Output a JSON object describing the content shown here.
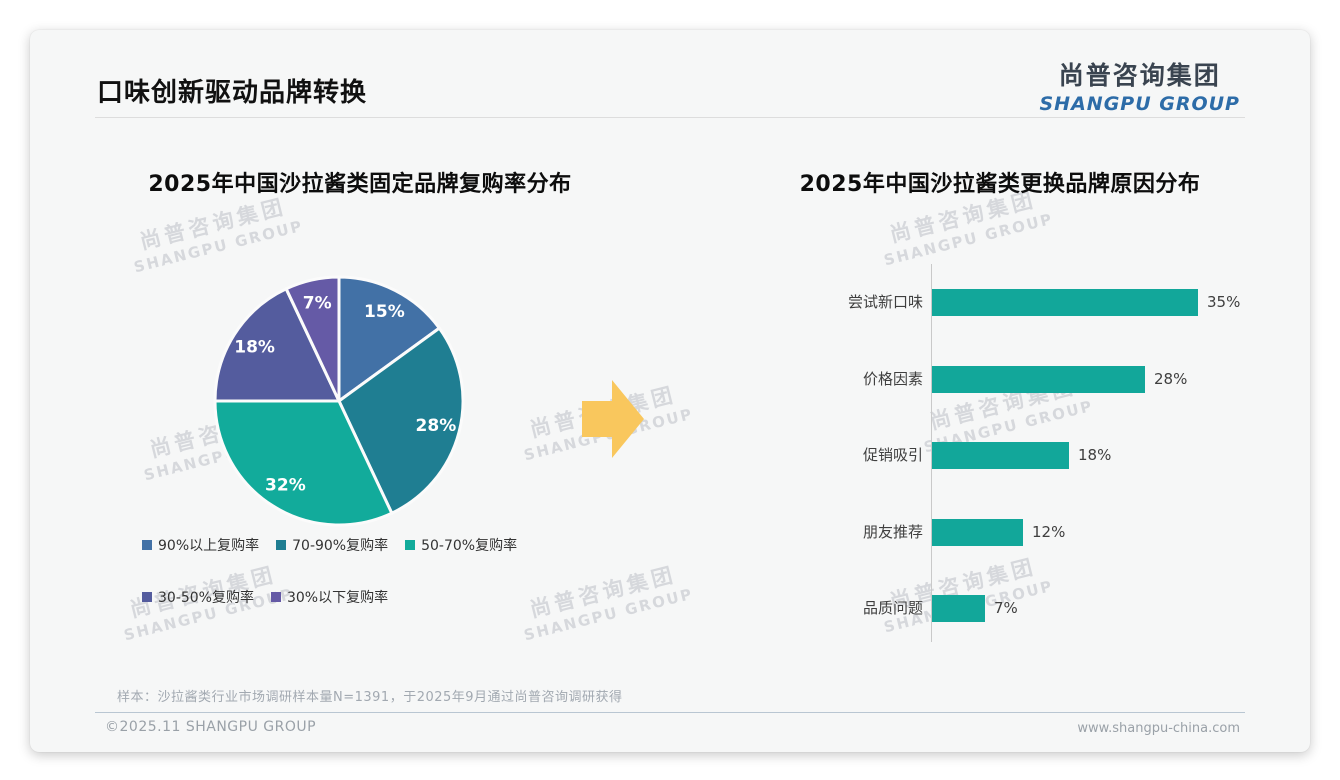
{
  "slide": {
    "title": "口味创新驱动品牌转换",
    "logo": {
      "cn": "尚普咨询集团",
      "en": "SHANGPU GROUP"
    },
    "watermark": {
      "cn": "尚普咨询集团",
      "en": "SHANGPU GROUP"
    },
    "footer": {
      "note": "样本：沙拉酱类行业市场调研样本量N=1391，于2025年9月通过尚普咨询调研获得",
      "copyright": "©2025.11 SHANGPU GROUP",
      "website": "www.shangpu-china.com"
    },
    "arrow_color": "#f9c75d"
  },
  "chart_data": [
    {
      "type": "pie",
      "title": "2025年中国沙拉酱类固定品牌复购率分布",
      "labels": [
        "90%以上复购率",
        "70-90%复购率",
        "50-70%复购率",
        "30-50%复购率",
        "30%以下复购率"
      ],
      "values": [
        15,
        28,
        32,
        18,
        7
      ],
      "unit": "%",
      "colors": [
        "#4271a6",
        "#1f7e92",
        "#12ab9b",
        "#545c9e",
        "#655aa6"
      ],
      "data_labels": [
        "15%",
        "28%",
        "32%",
        "18%",
        "7%"
      ],
      "start_angle_deg": 0,
      "direction": "clockwise",
      "legend_position": "bottom"
    },
    {
      "type": "bar",
      "title": "2025年中国沙拉酱类更换品牌原因分布",
      "orientation": "horizontal",
      "categories": [
        "尝试新口味",
        "价格因素",
        "促销吸引",
        "朋友推荐",
        "品质问题"
      ],
      "values": [
        35,
        28,
        18,
        12,
        7
      ],
      "unit": "%",
      "data_labels": [
        "35%",
        "28%",
        "18%",
        "12%",
        "7%"
      ],
      "bar_color": "#12a79a",
      "xlim": [
        0,
        40
      ],
      "grid": false,
      "legend_position": "none"
    }
  ]
}
